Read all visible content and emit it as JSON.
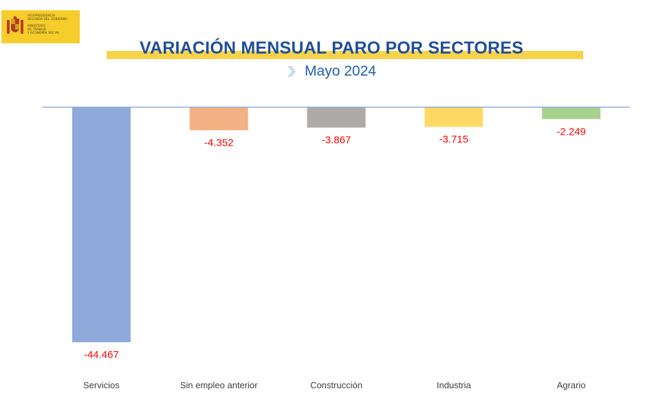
{
  "logo": {
    "lines": [
      "VICEPRESIDENCIA",
      "SEGUNDA DEL GOBIERNO",
      "",
      "MINISTERIO",
      "DE TRABAJO",
      "Y ECONOMÍA SOCIAL"
    ]
  },
  "header": {
    "title": "VARIACIÓN MENSUAL PARO POR SECTORES",
    "subtitle": "Mayo 2024"
  },
  "chart_data": {
    "type": "bar",
    "title": "VARIACIÓN MENSUAL PARO POR SECTORES",
    "subtitle": "Mayo 2024",
    "categories": [
      "Servicios",
      "Sin empleo anterior",
      "Construcción",
      "Industria",
      "Agrario"
    ],
    "values": [
      -44467,
      -4352,
      -3867,
      -3715,
      -2249
    ],
    "labels": [
      "-44.467",
      "-4.352",
      "-3.867",
      "-3.715",
      "-2.249"
    ],
    "colors": [
      "#8eaadb",
      "#f4b183",
      "#aeaaaa",
      "#ffd966",
      "#a9d18e"
    ],
    "label_color": "#ff0000",
    "axis_color": "#8faadc",
    "ylim": [
      -44467,
      0
    ],
    "grid": false,
    "legend": "none",
    "xlabel": "",
    "ylabel": ""
  }
}
